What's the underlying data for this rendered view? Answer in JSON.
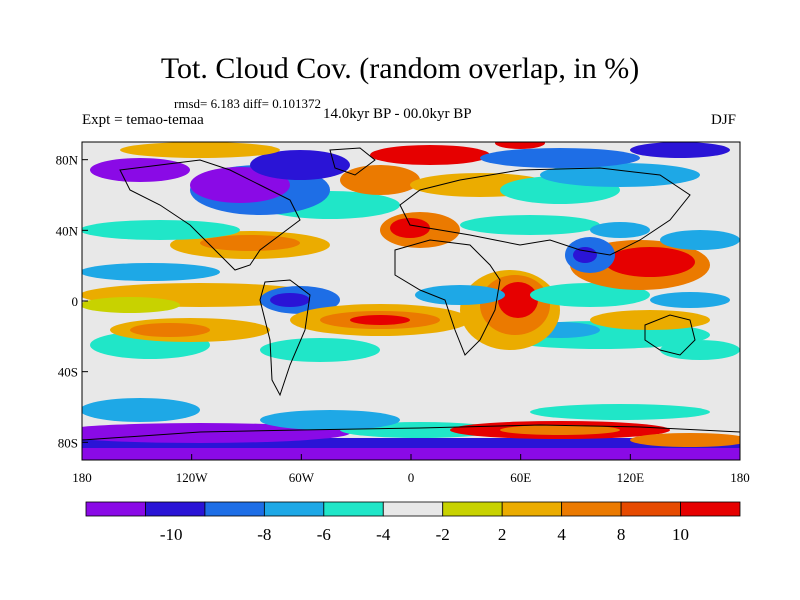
{
  "title": "Tot. Cloud Cov. (random overlap, in %)",
  "stats_text": "rmsd= 6.183 diff= 0.101372",
  "expt_text": "Expt = temao-temaa",
  "period_text": "14.0kyr BP - 00.0kyr BP",
  "season_text": "DJF",
  "map": {
    "lon_labels": [
      "180",
      "120W",
      "60W",
      "0",
      "60E",
      "120E",
      "180"
    ],
    "lat_labels": [
      "80N",
      "40N",
      "0",
      "40S",
      "80S"
    ],
    "lat_values": [
      80,
      40,
      0,
      -40,
      -80
    ]
  },
  "colorbar": {
    "colors": [
      "#8a0ae6",
      "#2a14d6",
      "#1e6ee6",
      "#1ea8e6",
      "#20e6c8",
      "#e8e8e8",
      "#c8d200",
      "#ebac00",
      "#eb7a00",
      "#e64a00",
      "#e60000"
    ],
    "labels": [
      "-10",
      "-8",
      "-6",
      "-4",
      "-2",
      "2",
      "4",
      "8",
      "10"
    ]
  }
}
